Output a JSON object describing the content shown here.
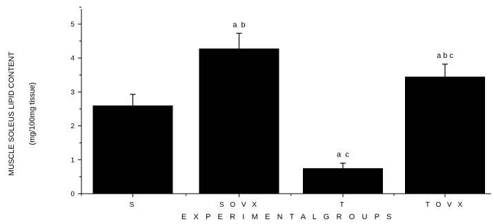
{
  "chart_data": {
    "type": "bar",
    "categories": [
      "S",
      "SOVX",
      "T",
      "TOVX"
    ],
    "category_labels": [
      "S",
      "S O V X",
      "T",
      "T O V X"
    ],
    "values": [
      2.6,
      4.28,
      0.75,
      3.45
    ],
    "errors": [
      0.33,
      0.45,
      0.15,
      0.37
    ],
    "significance": [
      "",
      "a  b",
      "a  c",
      "a b c"
    ],
    "xlabel": "E X P E R I M E N T A L   G R O U P S",
    "ylabel": "MUSCLE SOLEUS LIPID CONTENT",
    "ylabel_units": "(mg/100mg tissue)",
    "ylim": [
      0,
      5.5
    ],
    "yticks": [
      0,
      1,
      2,
      3,
      4,
      5
    ],
    "bar_color": "#000000",
    "grid": false
  }
}
